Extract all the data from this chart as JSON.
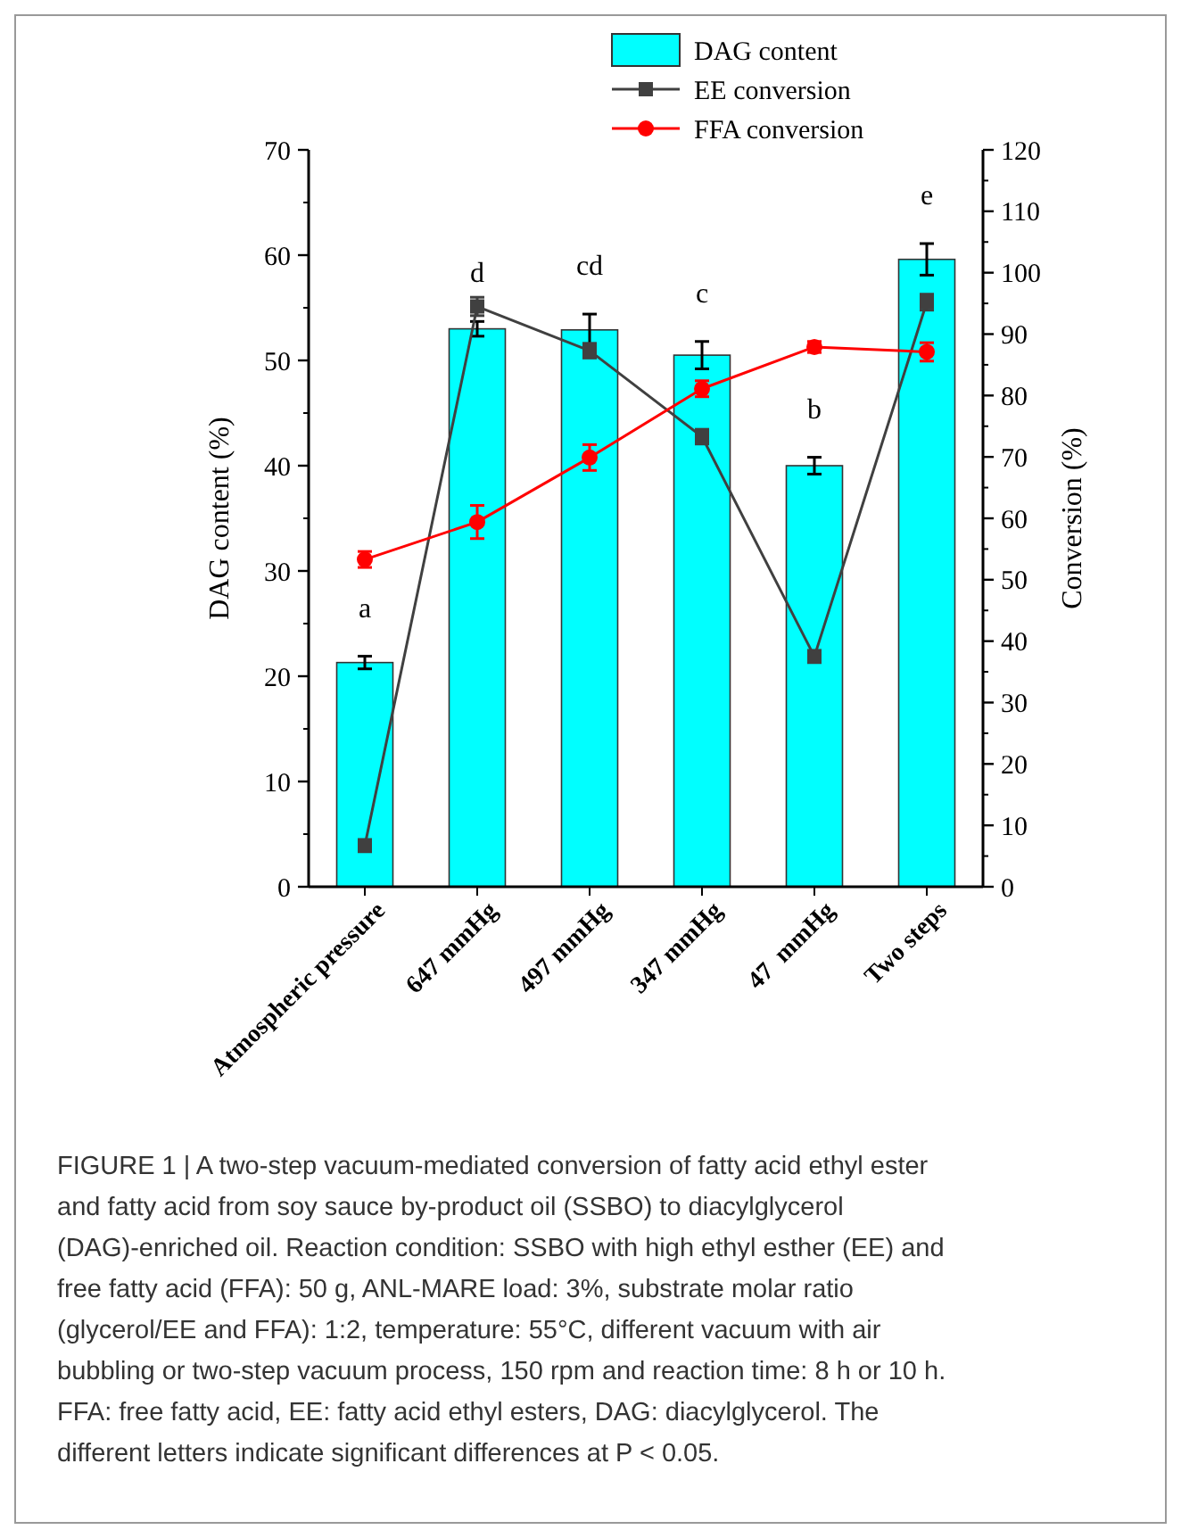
{
  "chart_data": {
    "type": "bar",
    "ylabel": "DAG content (%)",
    "y2label": "Conversion (%)",
    "categories": [
      "Atmospheric pressure",
      "647 mmHg",
      "497 mmHg",
      "347 mmHg",
      "47  mmHg",
      "Two steps"
    ],
    "series": [
      {
        "name": "DAG content",
        "color": "#00ffff",
        "values": [
          21.3,
          53,
          52.9,
          50.5,
          40,
          59.6
        ],
        "errors": [
          0.6,
          0.7,
          1.5,
          1.3,
          0.8,
          1.5
        ]
      },
      {
        "name": "EE conversion",
        "type": "line",
        "axis": "y2",
        "color": "#404040",
        "marker": "square",
        "values": [
          6.7,
          94.5,
          87.3,
          73.3,
          37.5,
          95.2
        ],
        "errors": [
          1,
          1.5,
          1.2,
          1.2,
          1,
          1.3
        ]
      },
      {
        "name": "FFA conversion",
        "type": "line",
        "axis": "y2",
        "color": "#ff0000",
        "marker": "circle",
        "values": [
          53.3,
          59.4,
          69.9,
          81.1,
          87.9,
          87.1
        ],
        "errors": [
          1.3,
          2.7,
          2.1,
          1.3,
          0.9,
          1.5
        ]
      }
    ],
    "ylim": [
      0,
      70
    ],
    "yticks": [
      0,
      10,
      20,
      30,
      40,
      50,
      60,
      70
    ],
    "y2lim": [
      0,
      120
    ],
    "y2ticks": [
      0,
      10,
      20,
      30,
      40,
      50,
      60,
      70,
      80,
      90,
      100,
      110,
      120
    ],
    "legend": "top right",
    "annotations": [
      "a",
      "d",
      "cd",
      "c",
      "b",
      "e",
      "FIGURE 1 | A two-step vacuum-mediated conversion of fatty acid ethyl ester and fatty acid from soy sauce by-product oil (SSBO) to diacylglycerol (DAG)-enriched oil. Reaction condition: SSBO with high ethyl esther (EE) and free fatty acid (FFA): 50 g, ANL-MARE load: 3%, substrate molar ratio (glycerol/EE and FFA): 1:2, temperature: 55°C, different vacuum with air bubbling or two-step vacuum process, 150 rpm and reaction time: 8 h or 10 h. FFA: free fatty acid, EE: fatty acid ethyl esters, DAG: diacylglycerol. The different letters indicate significant differences at P < 0.05."
    ]
  }
}
